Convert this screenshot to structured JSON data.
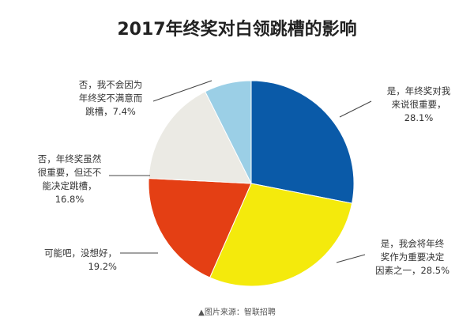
{
  "chart_data": {
    "type": "pie",
    "title": "2017年终奖对白领跳槽的影响",
    "slices": [
      {
        "lines": [
          "是，年终奖对我",
          "来说很重要，",
          "28.1%"
        ],
        "value": 28.1,
        "color": "#0a5aa8"
      },
      {
        "lines": [
          "是，我会将年终",
          "奖作为重要决定",
          "因素之一，28.5%"
        ],
        "value": 28.5,
        "color": "#f4ea0c"
      },
      {
        "lines": [
          "可能吧，没想好，",
          "19.2%"
        ],
        "value": 19.2,
        "color": "#e43f14"
      },
      {
        "lines": [
          "否，年终奖虽然",
          "很重要，但还不",
          "能决定跳槽，",
          "16.8%"
        ],
        "value": 16.8,
        "color": "#ebeae4"
      },
      {
        "lines": [
          "否，我不会因为",
          "年终奖不满意而",
          "跳槽，7.4%"
        ],
        "value": 7.4,
        "color": "#9bcfe6"
      }
    ]
  },
  "source": "▲图片来源：智联招聘"
}
